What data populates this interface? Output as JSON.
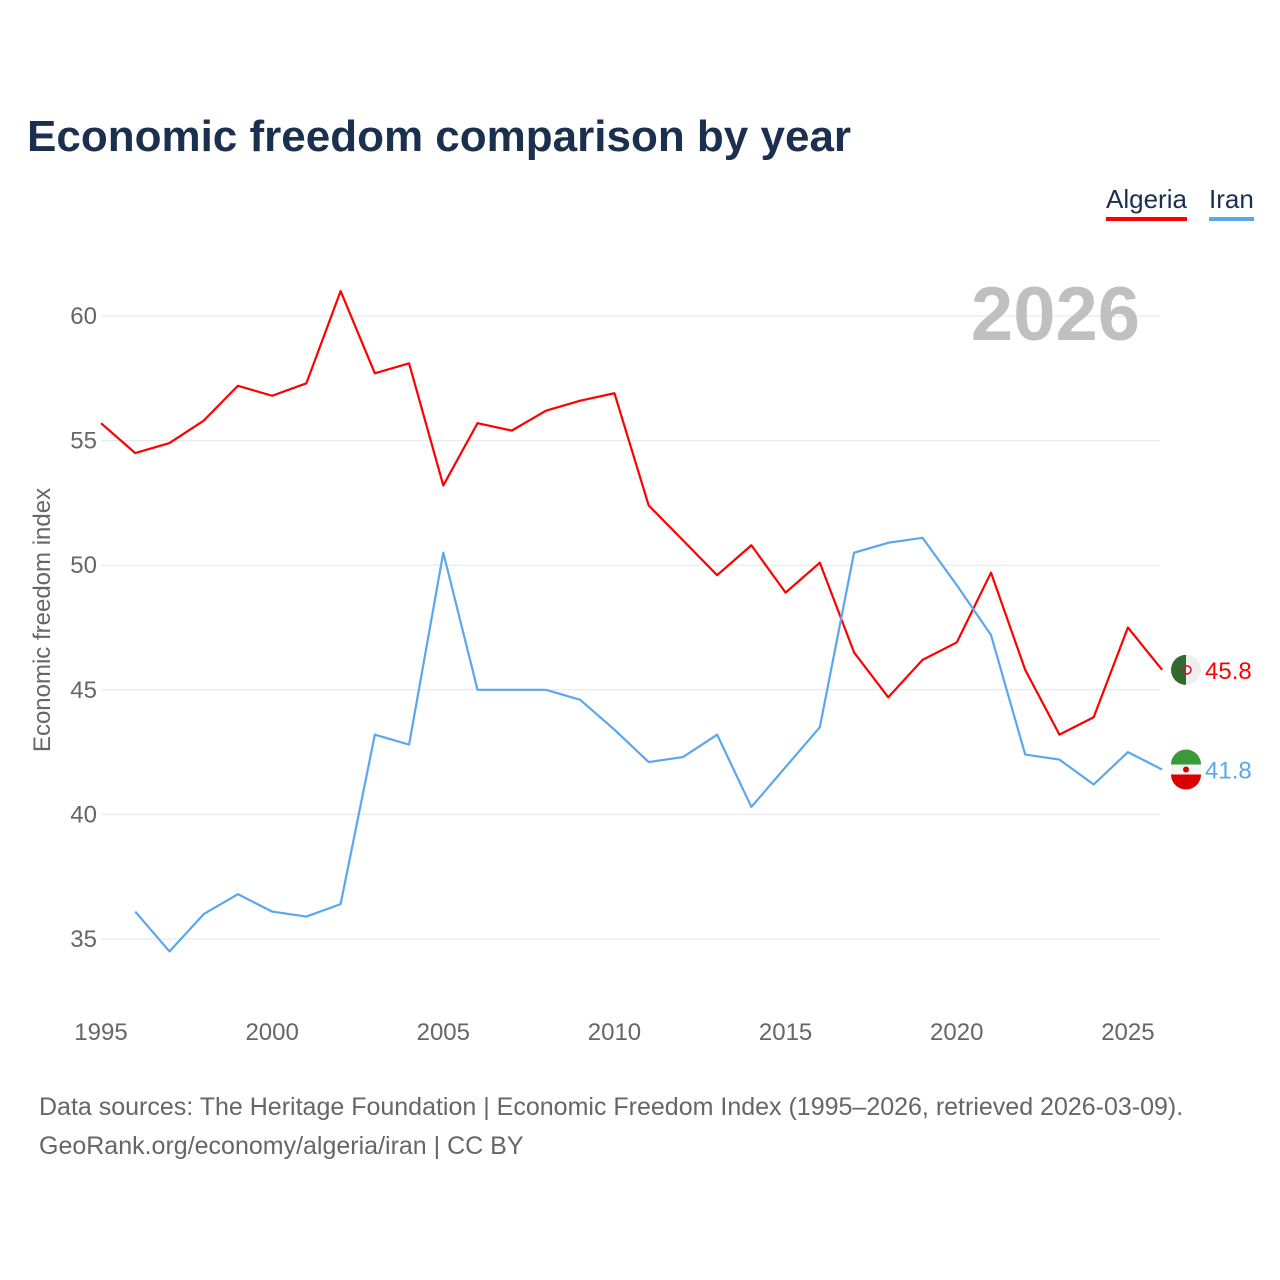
{
  "title": "Economic freedom comparison by year",
  "legend": [
    {
      "name": "Algeria",
      "color": "#ff0000"
    },
    {
      "name": "Iran",
      "color": "#5aa7ee"
    }
  ],
  "source_line1": "Data sources: The Heritage Foundation | Economic Freedom Index (1995–2026, retrieved 2026-03-09).",
  "source_line2": "GeoRank.org/economy/algeria/iran | CC BY",
  "chart_data": {
    "type": "line",
    "title": "Economic freedom comparison by year",
    "xlabel": "",
    "ylabel": "Economic freedom index",
    "year_label": "2026",
    "xlim": [
      1995,
      2026
    ],
    "ylim": [
      32.5,
      63
    ],
    "x_ticks": [
      1995,
      2000,
      2005,
      2010,
      2015,
      2020,
      2025
    ],
    "y_ticks": [
      35,
      40,
      45,
      50,
      55,
      60
    ],
    "grid": true,
    "series": [
      {
        "name": "Algeria",
        "color": "#ff0000",
        "end_label": "45.8",
        "x": [
          1995,
          1996,
          1997,
          1998,
          1999,
          2000,
          2001,
          2002,
          2003,
          2004,
          2005,
          2006,
          2007,
          2008,
          2009,
          2010,
          2011,
          2012,
          2013,
          2014,
          2015,
          2016,
          2017,
          2018,
          2019,
          2020,
          2021,
          2022,
          2023,
          2024,
          2025,
          2026
        ],
        "values": [
          55.7,
          54.5,
          54.9,
          55.8,
          57.2,
          56.8,
          57.3,
          61.0,
          57.7,
          58.1,
          53.2,
          55.7,
          55.4,
          56.2,
          56.6,
          56.9,
          52.4,
          51.0,
          49.6,
          50.8,
          48.9,
          50.1,
          46.5,
          44.7,
          46.2,
          46.9,
          49.7,
          45.8,
          43.2,
          43.9,
          47.5,
          45.8
        ]
      },
      {
        "name": "Iran",
        "color": "#5aa7ee",
        "end_label": "41.8",
        "x": [
          1996,
          1997,
          1998,
          1999,
          2000,
          2001,
          2002,
          2003,
          2004,
          2005,
          2006,
          2007,
          2008,
          2009,
          2010,
          2011,
          2012,
          2013,
          2014,
          2015,
          2016,
          2017,
          2018,
          2019,
          2020,
          2021,
          2022,
          2023,
          2024,
          2025,
          2026
        ],
        "values": [
          36.1,
          34.5,
          36.0,
          36.8,
          36.1,
          35.9,
          36.4,
          43.2,
          42.8,
          50.5,
          45.0,
          45.0,
          45.0,
          44.6,
          43.4,
          42.1,
          42.3,
          43.2,
          40.3,
          41.9,
          43.5,
          50.5,
          50.9,
          51.1,
          49.2,
          47.2,
          42.4,
          42.2,
          41.2,
          42.5,
          41.8
        ]
      }
    ]
  }
}
